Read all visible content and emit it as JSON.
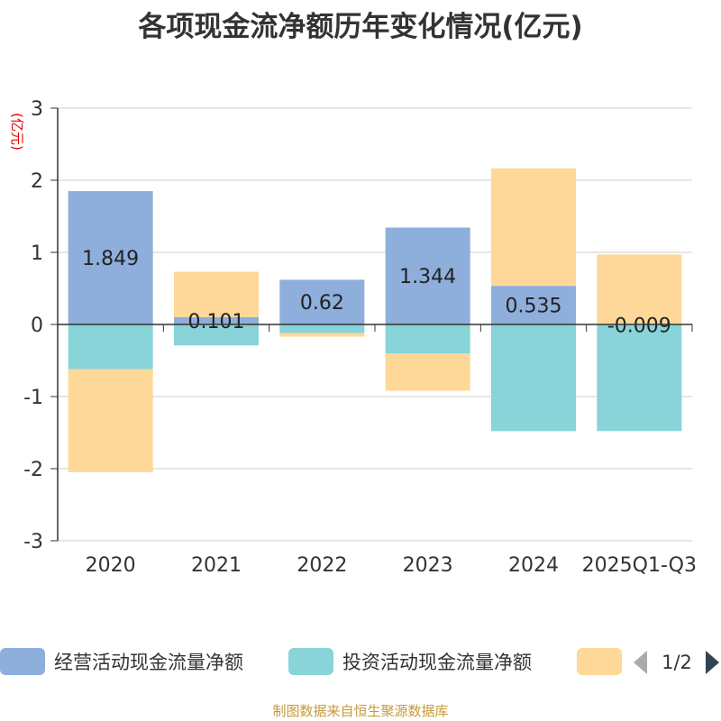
{
  "chart_data": {
    "type": "bar",
    "stacked": true,
    "title": "各项现金流净额历年变化情况(亿元)",
    "ylabel": "(亿元)",
    "xlabel": "",
    "ylim": [
      -3,
      3
    ],
    "yticks": [
      -3,
      -2,
      -1,
      0,
      1,
      2,
      3
    ],
    "categories": [
      "2020",
      "2021",
      "2022",
      "2023",
      "2024",
      "2025Q1-Q3"
    ],
    "series": [
      {
        "name": "经营活动现金流量净额",
        "color": "#8eaedb",
        "values": [
          1.849,
          0.101,
          0.62,
          1.344,
          0.535,
          -0.009
        ],
        "labels": [
          "1.849",
          "0.101",
          "0.62",
          "1.344",
          "0.535",
          "-0.009"
        ]
      },
      {
        "name": "投资活动现金流量净额",
        "color": "#88d4d8",
        "values": [
          -0.62,
          -0.29,
          -0.12,
          -0.4,
          -1.48,
          -1.47
        ]
      },
      {
        "name": "",
        "color": "#fdd898",
        "values": [
          -1.43,
          0.63,
          -0.05,
          -0.52,
          1.63,
          0.97
        ]
      }
    ],
    "legend": {
      "position": "bottom",
      "page": "1/2"
    }
  },
  "footer": "制图数据来自恒生聚源数据库"
}
